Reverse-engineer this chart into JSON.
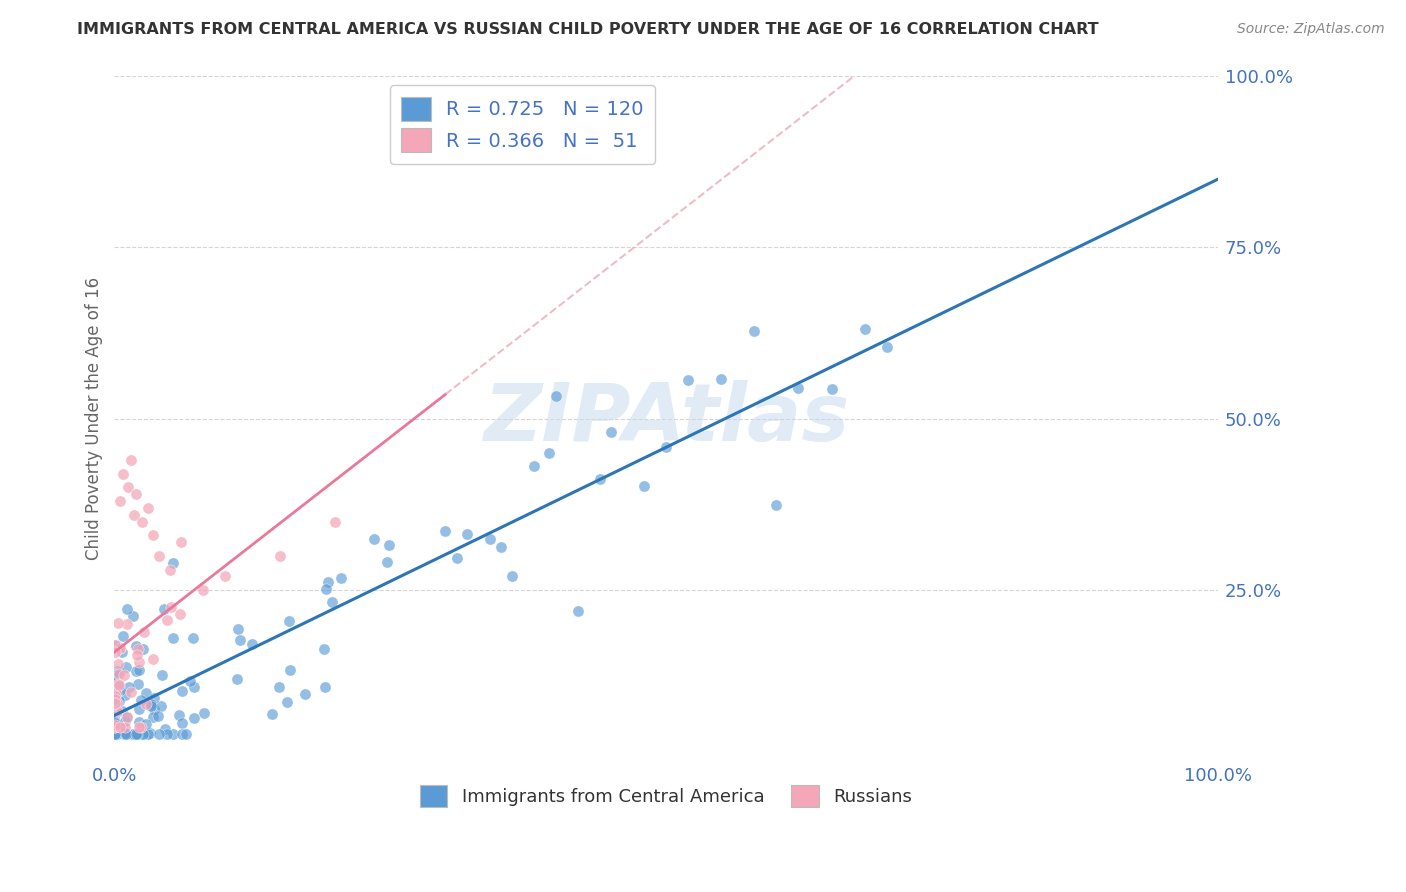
{
  "title": "IMMIGRANTS FROM CENTRAL AMERICA VS RUSSIAN CHILD POVERTY UNDER THE AGE OF 16 CORRELATION CHART",
  "source": "Source: ZipAtlas.com",
  "ylabel": "Child Poverty Under the Age of 16",
  "blue_R": 0.725,
  "blue_N": 120,
  "pink_R": 0.366,
  "pink_N": 51,
  "blue_color": "#5B9BD5",
  "pink_color": "#F4A7B9",
  "blue_line_color": "#2E75B6",
  "pink_line_color": "#E8799A",
  "pink_dash_color": "#E8A0B0",
  "watermark_color": "#C5D8EE",
  "legend_label_blue": "Immigrants from Central America",
  "legend_label_pink": "Russians",
  "background_color": "#FFFFFF",
  "grid_color": "#CCCCCC",
  "title_color": "#333333",
  "label_color": "#4472C4",
  "right_tick_color": "#4472C4"
}
